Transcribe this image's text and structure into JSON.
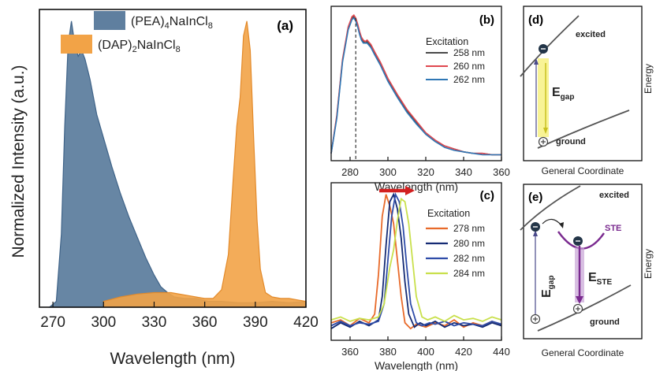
{
  "panels": {
    "a": {
      "label": "(a)"
    },
    "b": {
      "label": "(b)"
    },
    "c": {
      "label": "(c)"
    },
    "d": {
      "label": "(d)"
    },
    "e": {
      "label": "(e)"
    }
  },
  "colors": {
    "pea_fill": "#5f7f9f",
    "pea_stroke": "#3f6388",
    "dap_fill": "#f2a347",
    "dap_stroke": "#e38a2a",
    "b_258": "#4a4a4a",
    "b_260": "#e0484f",
    "b_262": "#2f77b5",
    "c_278": "#e86a2a",
    "c_280": "#152b74",
    "c_282": "#2e4ca8",
    "c_284": "#c9e04c",
    "arrow_red": "#d22020",
    "gap_yellow": "#f7f28a",
    "ste_purple": "#7a2a8f",
    "electron": "#233548"
  },
  "chart_data": [
    {
      "panel": "a",
      "type": "area",
      "xlabel": "Wavelength (nm)",
      "ylabel": "Normalized Intensity (a.u.)",
      "xlim": [
        262,
        420
      ],
      "ylim": [
        0,
        1.02
      ],
      "xticks": [
        270,
        300,
        330,
        360,
        390,
        420
      ],
      "legend_position": "top-left",
      "series": [
        {
          "legend_main": "(PEA)",
          "sub1": "4",
          "mid": "NaInCl",
          "sub2": "8",
          "color": "#5f7f9f",
          "x": [
            268,
            272,
            275,
            277,
            279,
            281,
            283,
            285,
            287,
            289,
            292,
            296,
            300,
            305,
            310,
            315,
            320,
            325,
            330,
            334,
            338,
            342,
            348,
            355,
            362,
            370,
            380,
            390,
            400,
            410,
            420
          ],
          "y": [
            0.0,
            0.02,
            0.25,
            0.62,
            0.9,
            0.98,
            0.9,
            0.86,
            0.88,
            0.85,
            0.78,
            0.66,
            0.58,
            0.48,
            0.39,
            0.31,
            0.24,
            0.17,
            0.11,
            0.07,
            0.05,
            0.035,
            0.03,
            0.03,
            0.02,
            0.02,
            0.015,
            0.015,
            0.02,
            0.015,
            0.02
          ]
        },
        {
          "legend_main": "(DAP)",
          "sub1": "2",
          "mid": "NaInCl",
          "sub2": "8",
          "color": "#f2a347",
          "x": [
            300,
            310,
            320,
            330,
            340,
            350,
            360,
            365,
            370,
            374,
            377,
            379,
            381,
            383,
            385,
            387,
            389,
            391,
            393,
            396,
            400,
            405,
            410,
            420
          ],
          "y": [
            0.02,
            0.035,
            0.045,
            0.05,
            0.05,
            0.04,
            0.03,
            0.03,
            0.06,
            0.18,
            0.45,
            0.62,
            0.72,
            0.93,
            0.98,
            0.88,
            0.58,
            0.3,
            0.13,
            0.05,
            0.035,
            0.03,
            0.03,
            0.02
          ]
        }
      ]
    },
    {
      "panel": "b",
      "type": "line",
      "xlabel": "Wavelength (nm)",
      "xlim": [
        270,
        360
      ],
      "ylim": [
        0,
        1.05
      ],
      "xticks": [
        280,
        300,
        320,
        340,
        360
      ],
      "legend_title": "Excitation",
      "legend_position": "right",
      "marker_x": 283,
      "x": [
        270,
        273,
        276,
        279,
        281,
        282,
        283,
        284,
        285,
        286,
        287,
        288,
        289,
        291,
        293,
        296,
        300,
        305,
        310,
        315,
        320,
        325,
        330,
        335,
        340,
        345,
        350,
        355,
        360
      ],
      "series": [
        {
          "name": "258 nm",
          "color": "#4a4a4a",
          "y": [
            0.05,
            0.3,
            0.68,
            0.9,
            0.97,
            0.98,
            0.96,
            0.92,
            0.87,
            0.83,
            0.81,
            0.8,
            0.81,
            0.78,
            0.73,
            0.66,
            0.55,
            0.44,
            0.34,
            0.26,
            0.18,
            0.13,
            0.1,
            0.08,
            0.06,
            0.05,
            0.05,
            0.04,
            0.04
          ]
        },
        {
          "name": "260 nm",
          "color": "#e0484f",
          "y": [
            0.05,
            0.31,
            0.69,
            0.91,
            0.98,
            0.99,
            0.97,
            0.93,
            0.88,
            0.84,
            0.82,
            0.81,
            0.82,
            0.79,
            0.74,
            0.67,
            0.56,
            0.45,
            0.35,
            0.27,
            0.19,
            0.14,
            0.1,
            0.08,
            0.06,
            0.05,
            0.05,
            0.04,
            0.04
          ]
        },
        {
          "name": "262 nm",
          "color": "#2f77b5",
          "y": [
            0.05,
            0.29,
            0.67,
            0.89,
            0.96,
            0.97,
            0.95,
            0.91,
            0.86,
            0.82,
            0.8,
            0.8,
            0.8,
            0.77,
            0.72,
            0.65,
            0.54,
            0.43,
            0.33,
            0.25,
            0.18,
            0.13,
            0.09,
            0.07,
            0.06,
            0.05,
            0.04,
            0.04,
            0.04
          ]
        }
      ]
    },
    {
      "panel": "c",
      "type": "line",
      "xlabel": "Wavelength (nm)",
      "xlim": [
        350,
        440
      ],
      "ylim": [
        0,
        1.08
      ],
      "xticks": [
        360,
        380,
        400,
        420,
        440
      ],
      "legend_title": "Excitation",
      "legend_position": "right",
      "series": [
        {
          "name": "278 nm",
          "color": "#e86a2a",
          "x": [
            350,
            355,
            360,
            365,
            370,
            373,
            375,
            377,
            379,
            381,
            383,
            385,
            387,
            389,
            392,
            395,
            400,
            405,
            410,
            415,
            420,
            425,
            430,
            435,
            440
          ],
          "y": [
            0.12,
            0.14,
            0.1,
            0.15,
            0.12,
            0.18,
            0.45,
            0.85,
            1.0,
            0.92,
            0.8,
            0.55,
            0.3,
            0.12,
            0.08,
            0.11,
            0.09,
            0.12,
            0.1,
            0.14,
            0.09,
            0.12,
            0.1,
            0.13,
            0.1
          ]
        },
        {
          "name": "280 nm",
          "color": "#152b74",
          "x": [
            350,
            355,
            360,
            365,
            370,
            375,
            377,
            379,
            381,
            383,
            385,
            387,
            389,
            391,
            394,
            397,
            400,
            405,
            410,
            415,
            420,
            425,
            430,
            435,
            440
          ],
          "y": [
            0.08,
            0.12,
            0.09,
            0.13,
            0.1,
            0.14,
            0.3,
            0.65,
            0.95,
            1.0,
            0.9,
            0.7,
            0.4,
            0.18,
            0.09,
            0.12,
            0.1,
            0.13,
            0.09,
            0.12,
            0.1,
            0.11,
            0.09,
            0.12,
            0.1
          ]
        },
        {
          "name": "282 nm",
          "color": "#2e4ca8",
          "x": [
            350,
            355,
            360,
            365,
            370,
            375,
            378,
            380,
            382,
            384,
            386,
            388,
            390,
            392,
            395,
            398,
            402,
            405,
            410,
            415,
            420,
            425,
            430,
            435,
            440
          ],
          "y": [
            0.1,
            0.13,
            0.1,
            0.12,
            0.11,
            0.13,
            0.25,
            0.55,
            0.85,
            1.0,
            0.95,
            0.78,
            0.5,
            0.25,
            0.12,
            0.1,
            0.12,
            0.11,
            0.13,
            0.1,
            0.12,
            0.11,
            0.1,
            0.13,
            0.11
          ]
        },
        {
          "name": "284 nm",
          "color": "#c9e04c",
          "x": [
            350,
            355,
            360,
            365,
            370,
            375,
            378,
            381,
            383,
            385,
            387,
            389,
            391,
            393,
            395,
            398,
            401,
            405,
            410,
            415,
            420,
            425,
            430,
            435,
            440
          ],
          "y": [
            0.14,
            0.16,
            0.13,
            0.15,
            0.14,
            0.16,
            0.25,
            0.5,
            0.62,
            0.82,
            0.97,
            0.95,
            0.8,
            0.55,
            0.3,
            0.16,
            0.14,
            0.16,
            0.13,
            0.17,
            0.14,
            0.15,
            0.13,
            0.16,
            0.14
          ]
        }
      ]
    }
  ],
  "diagram_d": {
    "excited": "excited",
    "ground": "ground",
    "gap_main": "E",
    "gap_sub": "gap",
    "xlabel": "General Coordinate",
    "ylabel": "Energy"
  },
  "diagram_e": {
    "excited": "excited",
    "ground": "ground",
    "ste": "STE",
    "gap_main": "E",
    "gap_sub": "gap",
    "ste_main": "E",
    "ste_sub": "STE",
    "xlabel": "General Coordinate",
    "ylabel": "Energy"
  }
}
